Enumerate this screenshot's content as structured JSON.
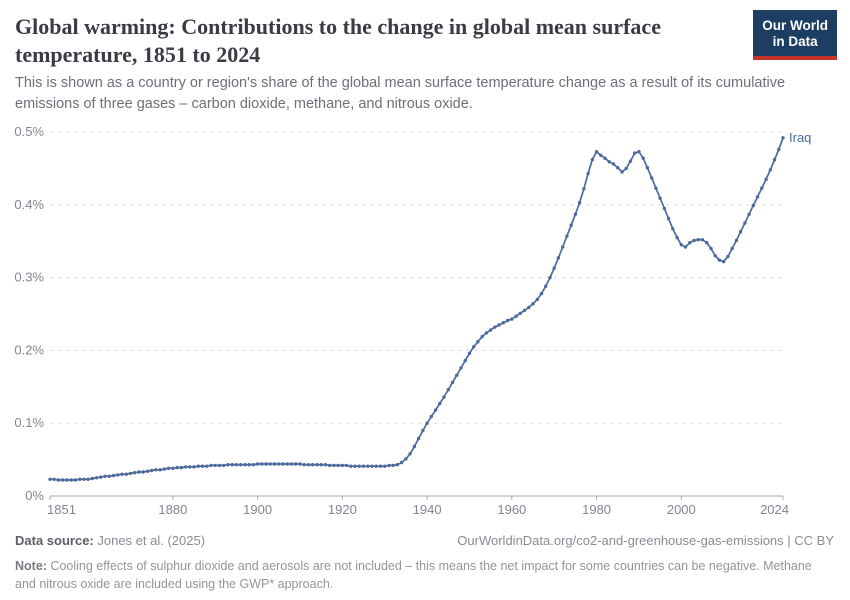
{
  "header": {
    "title": "Global warming: Contributions to the change in global mean surface temperature, 1851 to 2024",
    "subtitle": "This is shown as a country or region's share of the global mean surface temperature change as a result of its cumulative emissions of three gases – carbon dioxide, methane, and nitrous oxide.",
    "logo": {
      "line1": "Our World",
      "line2": "in Data",
      "bg_color": "#1d3d63",
      "accent_color": "#c5342b"
    }
  },
  "chart_data": {
    "type": "line",
    "title": "Global warming: Contributions to the change in global mean surface temperature, 1851 to 2024",
    "xlabel": "",
    "ylabel": "",
    "x_range": [
      1851,
      2024
    ],
    "ylim": [
      0,
      0.5
    ],
    "y_unit": "%",
    "grid": "horizontal-dashed",
    "legend_position": "end-of-line-label",
    "x_ticks": [
      1851,
      1880,
      1900,
      1920,
      1940,
      1960,
      1980,
      2000,
      2024
    ],
    "y_ticks": [
      {
        "value": 0,
        "label": "0%"
      },
      {
        "value": 0.1,
        "label": "0.1%"
      },
      {
        "value": 0.2,
        "label": "0.2%"
      },
      {
        "value": 0.3,
        "label": "0.3%"
      },
      {
        "value": 0.4,
        "label": "0.4%"
      },
      {
        "value": 0.5,
        "label": "0.5%"
      }
    ],
    "series": [
      {
        "name": "Iraq",
        "color": "#4c6a9c",
        "start_year": 1851,
        "end_year": 2024,
        "values": [
          0.023,
          0.023,
          0.022,
          0.022,
          0.022,
          0.022,
          0.022,
          0.023,
          0.023,
          0.023,
          0.024,
          0.025,
          0.026,
          0.027,
          0.027,
          0.028,
          0.029,
          0.03,
          0.03,
          0.031,
          0.032,
          0.033,
          0.033,
          0.034,
          0.035,
          0.036,
          0.036,
          0.037,
          0.038,
          0.038,
          0.039,
          0.039,
          0.04,
          0.04,
          0.04,
          0.041,
          0.041,
          0.041,
          0.042,
          0.042,
          0.042,
          0.042,
          0.043,
          0.043,
          0.043,
          0.043,
          0.043,
          0.043,
          0.043,
          0.044,
          0.044,
          0.044,
          0.044,
          0.044,
          0.044,
          0.044,
          0.044,
          0.044,
          0.044,
          0.044,
          0.043,
          0.043,
          0.043,
          0.043,
          0.043,
          0.043,
          0.042,
          0.042,
          0.042,
          0.042,
          0.042,
          0.041,
          0.041,
          0.041,
          0.041,
          0.041,
          0.041,
          0.041,
          0.041,
          0.041,
          0.042,
          0.042,
          0.043,
          0.046,
          0.051,
          0.058,
          0.068,
          0.079,
          0.09,
          0.1,
          0.109,
          0.118,
          0.127,
          0.136,
          0.146,
          0.156,
          0.166,
          0.176,
          0.186,
          0.196,
          0.205,
          0.212,
          0.219,
          0.224,
          0.228,
          0.232,
          0.235,
          0.238,
          0.241,
          0.243,
          0.247,
          0.251,
          0.255,
          0.259,
          0.264,
          0.27,
          0.278,
          0.288,
          0.3,
          0.313,
          0.327,
          0.342,
          0.357,
          0.372,
          0.387,
          0.403,
          0.422,
          0.443,
          0.462,
          0.473,
          0.468,
          0.464,
          0.459,
          0.456,
          0.451,
          0.445,
          0.45,
          0.46,
          0.471,
          0.473,
          0.464,
          0.451,
          0.437,
          0.423,
          0.409,
          0.395,
          0.381,
          0.367,
          0.355,
          0.345,
          0.342,
          0.348,
          0.351,
          0.352,
          0.352,
          0.348,
          0.34,
          0.33,
          0.324,
          0.322,
          0.329,
          0.34,
          0.351,
          0.363,
          0.375,
          0.387,
          0.399,
          0.411,
          0.423,
          0.435,
          0.448,
          0.462,
          0.476,
          0.492
        ]
      }
    ]
  },
  "footer": {
    "source_label": "Data source:",
    "source_value": " Jones et al. (2025)",
    "link": "OurWorldinData.org/co2-and-greenhouse-gas-emissions | CC BY",
    "note_label": "Note:",
    "note_value": " Cooling effects of sulphur dioxide and aerosols are not included – this means the net impact for some countries can be negative. Methane and nitrous oxide are included using the GWP* approach."
  }
}
